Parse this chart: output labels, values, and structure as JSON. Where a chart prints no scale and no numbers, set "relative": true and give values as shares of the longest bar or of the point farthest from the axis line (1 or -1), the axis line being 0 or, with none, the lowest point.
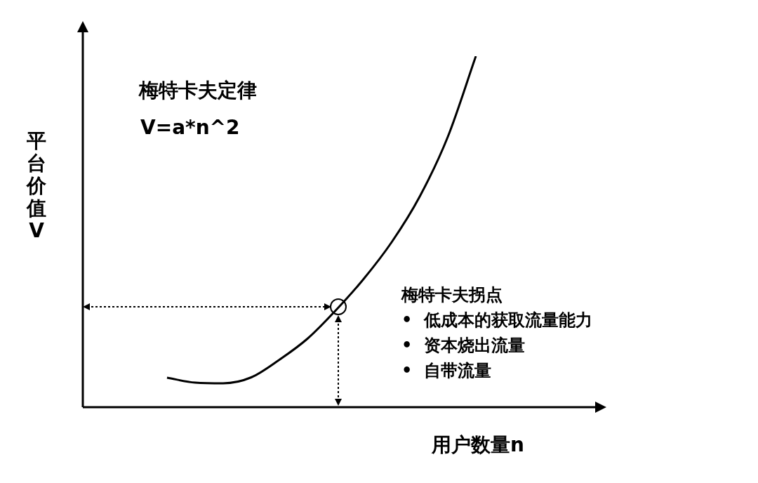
{
  "chart_data": {
    "type": "line",
    "title": "梅特卡夫定律",
    "subtitle": "V=a*n^2",
    "xlabel": "用户数量n",
    "ylabel": "平台价值V",
    "annotations": [
      "梅特卡夫拐点",
      "•  低成本的获取流量能力",
      "•  资本烧出流量",
      "•  自带流量"
    ],
    "categories": [
      null,
      null,
      null,
      null,
      null,
      null,
      null,
      null,
      null,
      null,
      null,
      null,
      null,
      null,
      null,
      null,
      null,
      null,
      null
    ],
    "values": [
      null,
      null,
      null,
      0.084,
      0.07,
      0.068,
      0.085,
      0.135,
      0.195,
      0.275,
      0.365,
      0.47,
      0.6,
      0.77,
      1.0,
      null,
      null,
      null,
      null
    ],
    "color": "#000000",
    "relative": true,
    "marker": "none",
    "line_style": "solid"
  }
}
